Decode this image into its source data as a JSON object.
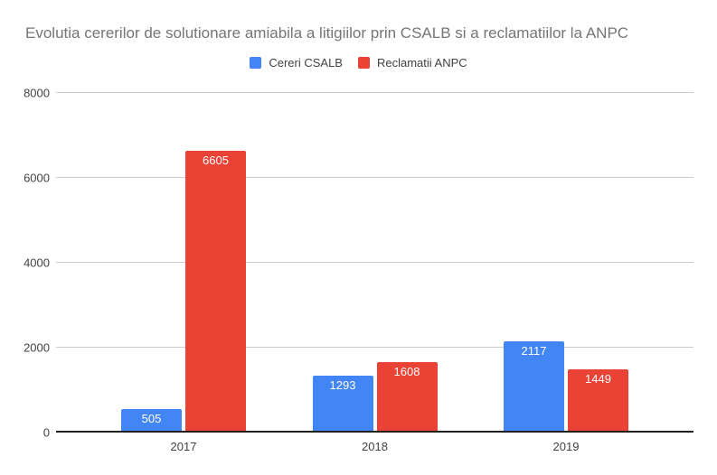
{
  "colors": {
    "background": "#ffffff",
    "title_text": "#757575",
    "axis_text": "#424242",
    "legend_text": "#424242",
    "gridline": "#cccccc",
    "axis_baseline": "#212121",
    "bar_label_text": "#ffffff",
    "series_blue": "#4285F4",
    "series_red": "#EA4335"
  },
  "legend": {
    "position": "top-center",
    "swatch_icon": "square-swatch-icon"
  },
  "chart_data": {
    "type": "bar",
    "title": "Evolutia cererilor de solutionare amiabila a litigiilor prin CSALB si a reclamatiilor la ANPC",
    "categories": [
      "2017",
      "2018",
      "2019"
    ],
    "series": [
      {
        "name": "Cereri CSALB",
        "color": "#4285F4",
        "values": [
          505,
          1293,
          2117
        ]
      },
      {
        "name": "Reclamatii ANPC",
        "color": "#EA4335",
        "values": [
          6605,
          1608,
          1449
        ]
      }
    ],
    "xlabel": "",
    "ylabel": "",
    "ylim": [
      0,
      8000
    ],
    "yticks": [
      0,
      2000,
      4000,
      6000,
      8000
    ],
    "grid": true,
    "legend_position": "top-center",
    "bar_value_labels": true
  }
}
